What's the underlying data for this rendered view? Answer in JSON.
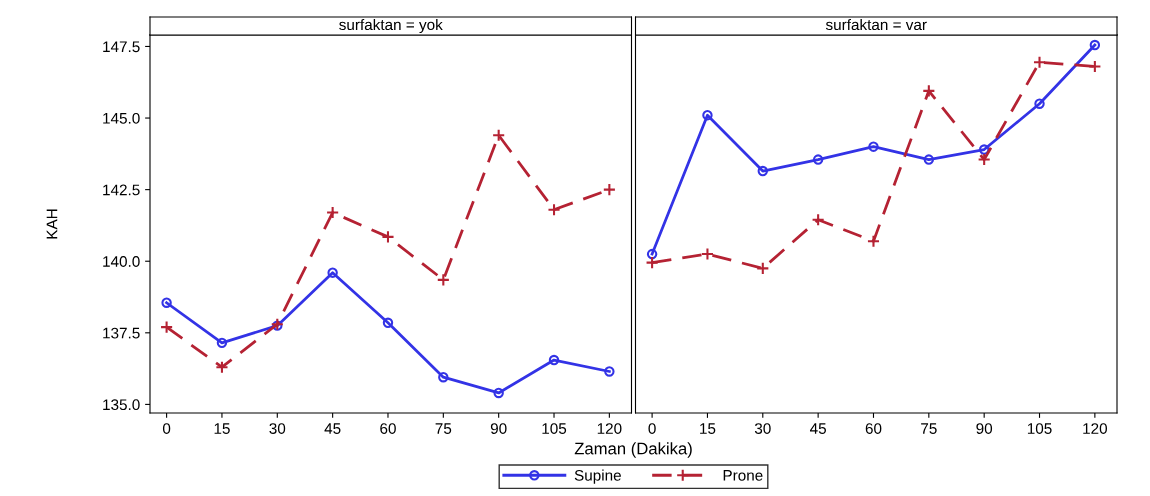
{
  "chart_data": [
    {
      "type": "line",
      "title": "surfaktan = yok",
      "xlabel": "Zaman (Dakika)",
      "ylabel": "KAH",
      "x": [
        0,
        15,
        30,
        45,
        60,
        75,
        90,
        105,
        120
      ],
      "xlim": [
        -4.5,
        126
      ],
      "xticks": [
        0,
        15,
        30,
        45,
        60,
        75,
        90,
        105,
        120
      ],
      "ylim": [
        134.7,
        147.9
      ],
      "yticks": [
        {
          "value": 135,
          "label": "135.0"
        },
        137.5,
        {
          "value": 140,
          "label": "140.0"
        },
        142.5,
        {
          "value": 145,
          "label": "145.0"
        },
        147.5
      ],
      "grid": false,
      "legend": "bottom",
      "series": [
        {
          "name": "Supine",
          "color": "#3333e6",
          "marker": "circle",
          "line_style": "solid",
          "values": [
            138.55,
            137.15,
            137.75,
            139.6,
            137.85,
            135.95,
            135.4,
            136.55,
            136.15
          ]
        },
        {
          "name": "Prone",
          "color": "#b52233",
          "marker": "cross",
          "line_style": "dashed",
          "values": [
            137.7,
            136.3,
            137.8,
            141.7,
            140.85,
            139.35,
            144.4,
            141.8,
            142.5
          ]
        }
      ]
    },
    {
      "type": "line",
      "title": "surfaktan = var",
      "x": [
        0,
        15,
        30,
        45,
        60,
        75,
        90,
        105,
        120
      ],
      "xlim": [
        -4.5,
        126
      ],
      "xticks": [
        0,
        15,
        30,
        45,
        60,
        75,
        90,
        105,
        120
      ],
      "ylim": [
        134.7,
        147.9
      ],
      "yticks": [
        135,
        137.5,
        140,
        142.5,
        145,
        147.5
      ],
      "tick_labels": "x",
      "grid": false,
      "series": [
        {
          "color": "#3333e6",
          "marker": "circle",
          "line_style": "solid",
          "values": [
            140.25,
            145.1,
            143.15,
            143.55,
            144.0,
            143.55,
            143.9,
            145.5,
            147.55
          ]
        },
        {
          "color": "#b52233",
          "marker": "cross",
          "line_style": "dashed",
          "values": [
            139.95,
            140.25,
            139.75,
            141.45,
            140.7,
            145.95,
            143.55,
            146.95,
            146.8
          ]
        }
      ]
    }
  ]
}
